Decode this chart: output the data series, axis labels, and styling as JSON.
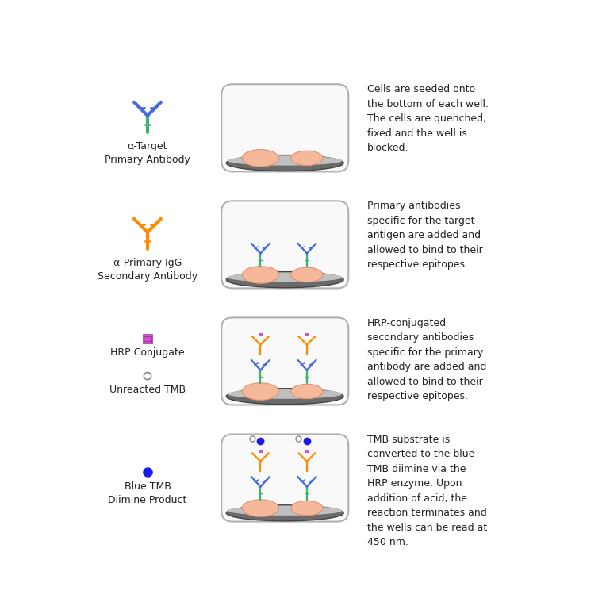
{
  "background_color": "#ffffff",
  "rows": [
    {
      "icon_label": "α-Target\nPrimary Antibody",
      "icon_type": "antibody_green_blue",
      "well_content": "cells_only",
      "description": "Cells are seeded onto\nthe bottom of each well.\nThe cells are quenched,\nfixed and the well is\nblocked."
    },
    {
      "icon_label": "α-Primary IgG\nSecondary Antibody",
      "icon_type": "antibody_orange",
      "well_content": "cells_with_primary",
      "description": "Primary antibodies\nspecific for the target\nantigen are added and\nallowed to bind to their\nrespective epitopes."
    },
    {
      "icon_label_top": "HRP Conjugate",
      "icon_label_bot": "Unreacted TMB",
      "icon_type": "hrp_tmb",
      "well_content": "cells_with_secondary",
      "description": "HRP-conjugated\nsecondary antibodies\nspecific for the primary\nantibody are added and\nallowed to bind to their\nrespective epitopes."
    },
    {
      "icon_label": "Blue TMB\nDiimine Product",
      "icon_type": "blue_tmb",
      "well_content": "cells_with_blue_tmb",
      "description": "TMB substrate is\nconverted to the blue\nTMB diimine via the\nHRP enzyme. Upon\naddition of acid, the\nreaction terminates and\nthe wells can be read at\n450 nm."
    }
  ],
  "cell_color": "#f5b89a",
  "cell_outline": "#e09070",
  "well_rim_color": "#888888",
  "well_rim_dark": "#555555",
  "primary_stem_color": "#3cb371",
  "primary_arm_color": "#4169e1",
  "secondary_color": "#ff8c00",
  "hrp_color": "#cc55cc",
  "tmb_blue_color": "#1a1aee"
}
